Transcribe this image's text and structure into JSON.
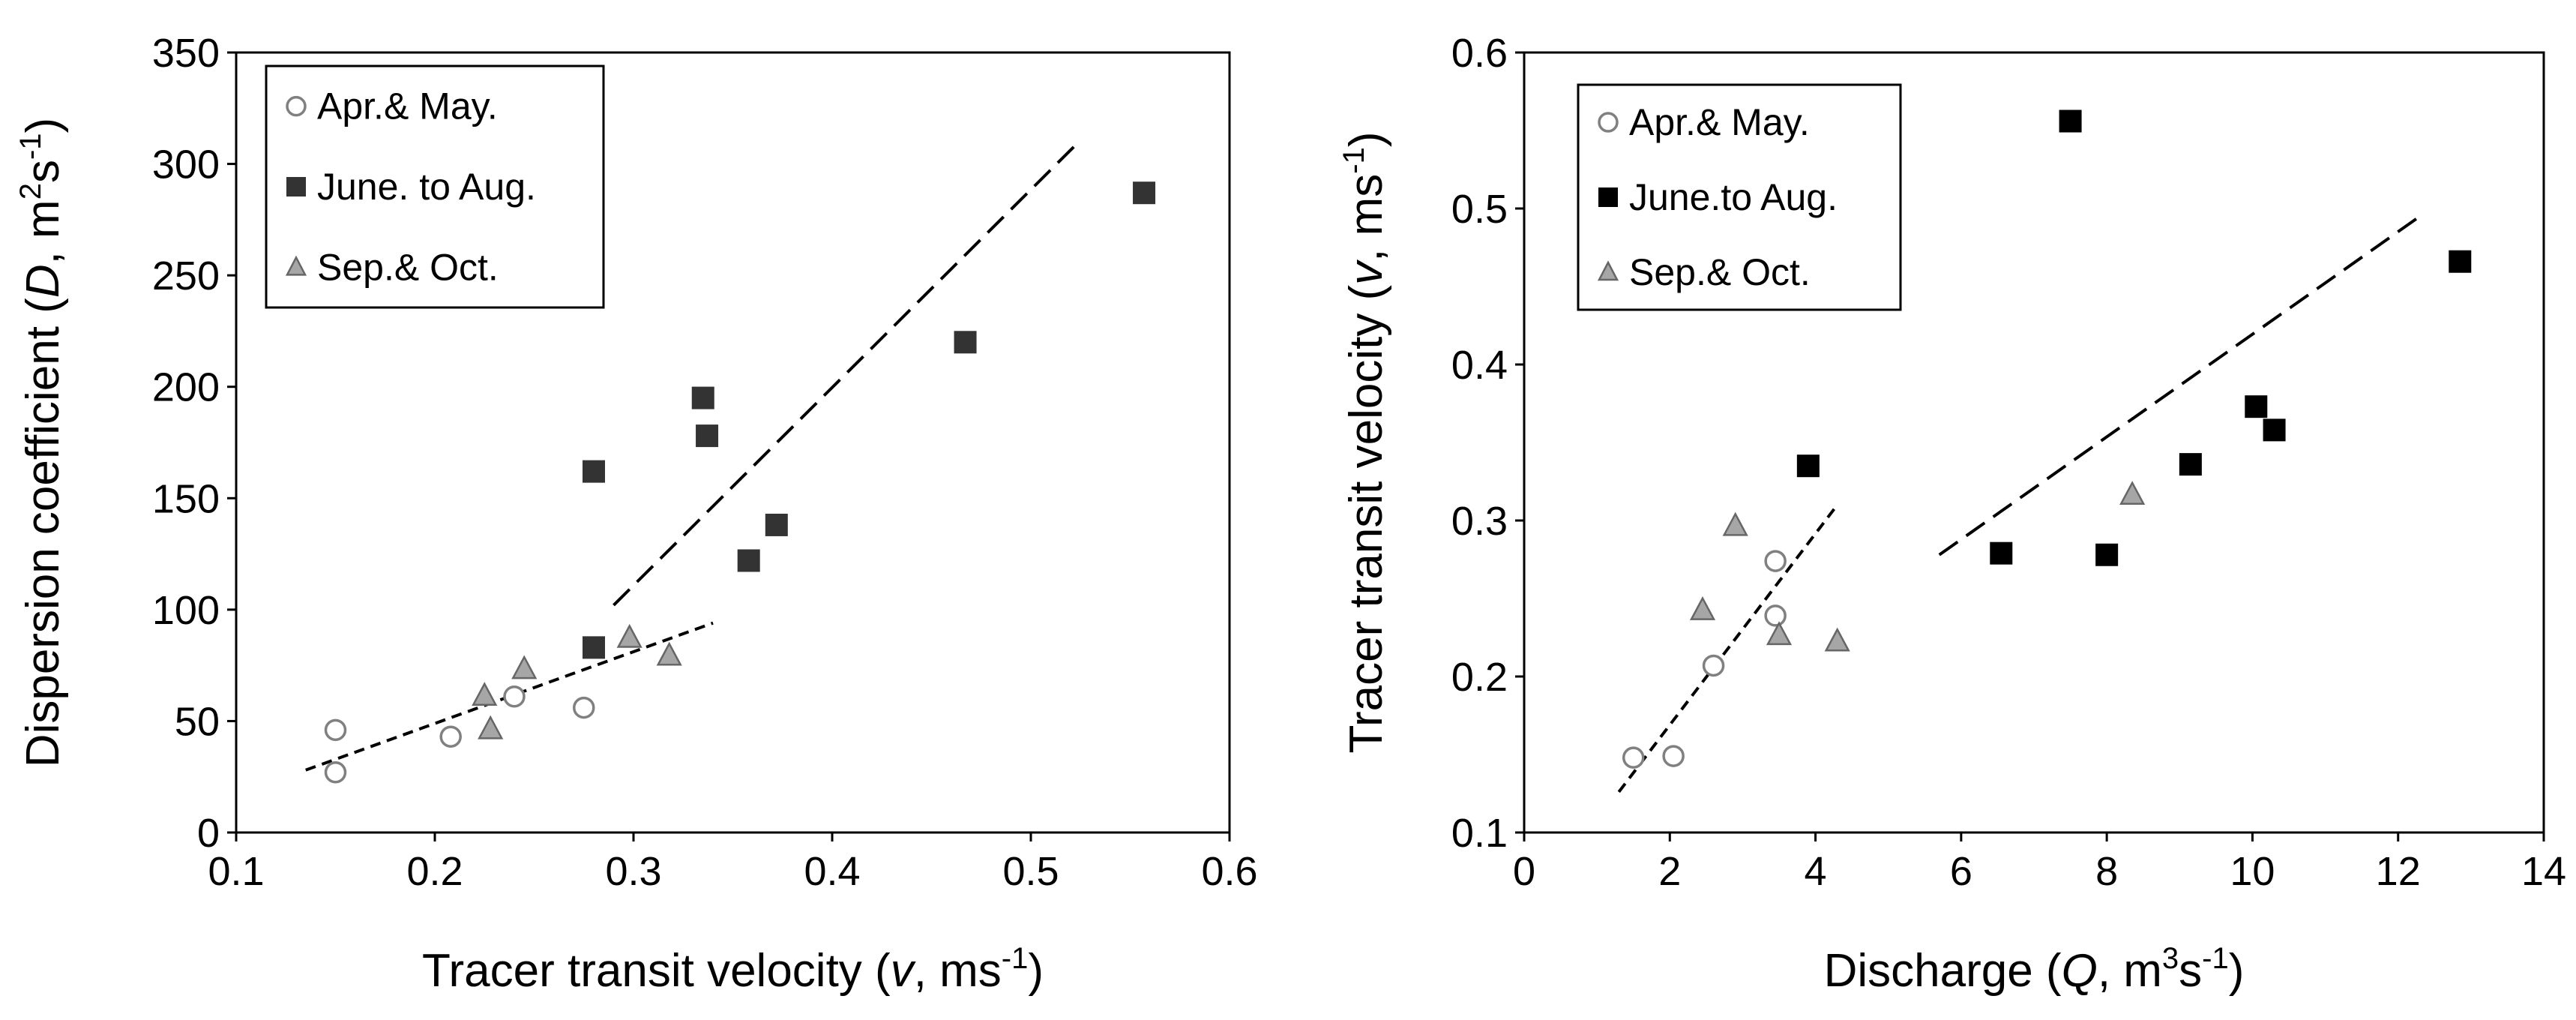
{
  "chart_data": [
    {
      "type": "scatter",
      "xlabel": "Tracer transit velocity (v, ms-1)",
      "ylabel": "Dispersion coefficient (D, m2s-1)",
      "xlim": [
        0.1,
        0.6
      ],
      "ylim": [
        0,
        350
      ],
      "xticks": [
        0.1,
        0.2,
        0.3,
        0.4,
        0.5,
        0.6
      ],
      "yticks": [
        0,
        50,
        100,
        150,
        200,
        250,
        300,
        350
      ],
      "xtick_labels": [
        "0.1",
        "0.2",
        "0.3",
        "0.4",
        "0.5",
        "0.6"
      ],
      "ytick_labels": [
        "0",
        "50",
        "100",
        "150",
        "200",
        "250",
        "300",
        "350"
      ],
      "xlabel_parts": {
        "pre": "Tracer transit velocity (",
        "ital": "v",
        "mid": ", ms",
        "sup": "-1",
        "post": ")"
      },
      "ylabel_parts": {
        "pre": "Dispersion coefficient (",
        "ital": "D",
        "mid": ", m",
        "sup": "2",
        "mid2": "s",
        "sup2": "-1",
        "post": ")"
      },
      "legend_location": "top-left",
      "series": [
        {
          "name": "Apr.& May.",
          "marker": "circle",
          "color": "#ffffff",
          "stroke": "#808080",
          "points": [
            [
              0.15,
              46
            ],
            [
              0.15,
              27
            ],
            [
              0.208,
              43
            ],
            [
              0.24,
              61
            ],
            [
              0.275,
              56
            ]
          ]
        },
        {
          "name": "June. to Aug.",
          "marker": "square",
          "color": "#333333",
          "stroke": "#333333",
          "points": [
            [
              0.28,
              162
            ],
            [
              0.28,
              83
            ],
            [
              0.335,
              195
            ],
            [
              0.337,
              178
            ],
            [
              0.358,
              122
            ],
            [
              0.372,
              138
            ],
            [
              0.467,
              220
            ],
            [
              0.557,
              287
            ]
          ]
        },
        {
          "name": "Sep.& Oct.",
          "marker": "triangle",
          "color": "#a6a6a6",
          "stroke": "#666666",
          "points": [
            [
              0.225,
              61
            ],
            [
              0.228,
              46
            ],
            [
              0.245,
              73
            ],
            [
              0.298,
              87
            ],
            [
              0.318,
              79
            ]
          ]
        }
      ],
      "trendlines": [
        {
          "name": "apr-sep-trend",
          "dash": "short",
          "x": [
            0.135,
            0.34
          ],
          "y": [
            28,
            94
          ]
        },
        {
          "name": "june-aug-trend",
          "dash": "long",
          "x": [
            0.29,
            0.522
          ],
          "y": [
            102,
            308
          ]
        }
      ]
    },
    {
      "type": "scatter",
      "xlabel": "Discharge (Q, m3s-1)",
      "ylabel": "Tracer transit velocity (v, ms-1)",
      "xlim": [
        0,
        14
      ],
      "ylim": [
        0.1,
        0.6
      ],
      "xticks": [
        0,
        2,
        4,
        6,
        8,
        10,
        12,
        14
      ],
      "yticks": [
        0.1,
        0.2,
        0.3,
        0.4,
        0.5,
        0.6
      ],
      "xtick_labels": [
        "0",
        "2",
        "4",
        "6",
        "8",
        "10",
        "12",
        "14"
      ],
      "ytick_labels": [
        "0.1",
        "0.2",
        "0.3",
        "0.4",
        "0.5",
        "0.6"
      ],
      "xlabel_parts": {
        "pre": "Discharge (",
        "ital": "Q",
        "mid": ", m",
        "sup": "3",
        "mid2": "s",
        "sup2": "-1",
        "post": ")"
      },
      "ylabel_parts": {
        "pre": "Tracer transit velocity (",
        "ital": "v",
        "mid": ", ms",
        "sup": "-1",
        "post": ")"
      },
      "legend_location": "top-left",
      "series": [
        {
          "name": "Apr.& May.",
          "marker": "circle",
          "color": "#ffffff",
          "stroke": "#808080",
          "points": [
            [
              1.5,
              0.148
            ],
            [
              2.05,
              0.149
            ],
            [
              2.6,
              0.207
            ],
            [
              3.45,
              0.274
            ],
            [
              3.45,
              0.239
            ]
          ]
        },
        {
          "name": "June.to Aug.",
          "marker": "square",
          "color": "#000000",
          "stroke": "#000000",
          "points": [
            [
              3.9,
              0.335
            ],
            [
              6.55,
              0.279
            ],
            [
              7.5,
              0.556
            ],
            [
              8.0,
              0.278
            ],
            [
              9.15,
              0.336
            ],
            [
              10.05,
              0.373
            ],
            [
              10.3,
              0.358
            ],
            [
              12.85,
              0.466
            ]
          ]
        },
        {
          "name": "Sep.& Oct.",
          "marker": "triangle",
          "color": "#a6a6a6",
          "stroke": "#666666",
          "points": [
            [
              2.9,
              0.296
            ],
            [
              2.45,
              0.242
            ],
            [
              3.5,
              0.226
            ],
            [
              4.3,
              0.222
            ],
            [
              8.35,
              0.316
            ]
          ]
        }
      ],
      "trendlines": [
        {
          "name": "apr-sep-trend",
          "dash": "short",
          "x": [
            1.3,
            4.3
          ],
          "y": [
            0.126,
            0.31
          ]
        },
        {
          "name": "june-aug-trend",
          "dash": "long",
          "x": [
            5.7,
            12.3
          ],
          "y": [
            0.278,
            0.495
          ]
        }
      ]
    }
  ]
}
